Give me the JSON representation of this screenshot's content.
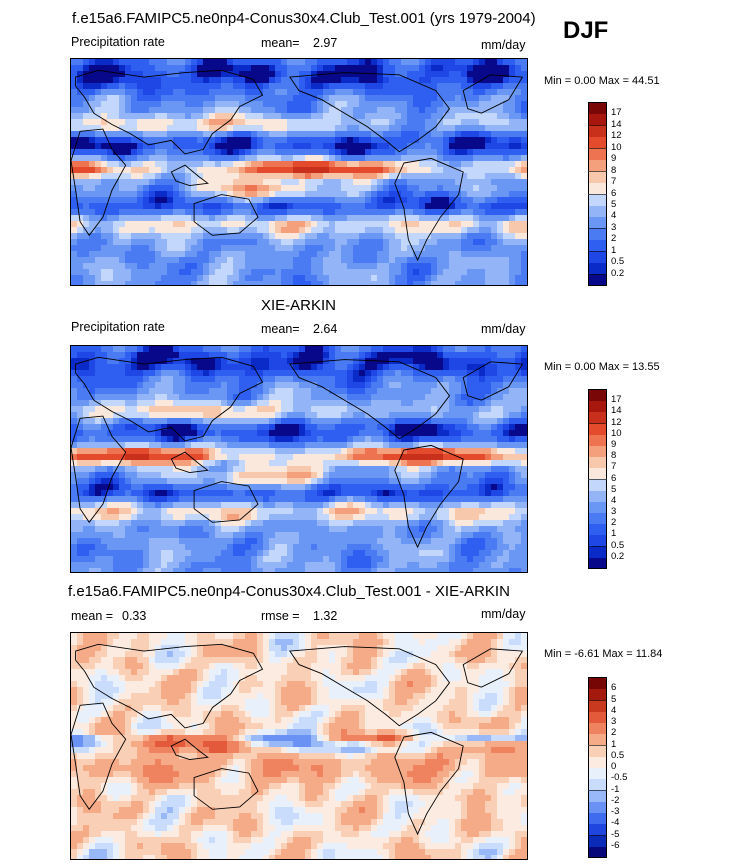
{
  "season": "DJF",
  "panels": [
    {
      "title": "f.e15a6.FAMIPC5.ne0np4-Conus30x4.Club_Test.001 (yrs 1979-2004)",
      "left_label": "Precipitation rate",
      "mid_label": "mean=",
      "mid_value": "2.97",
      "unit": "mm/day",
      "minmax": "Min =   0.00 Max =  44.51",
      "levels": [
        "0.2",
        "0.5",
        "1",
        "2",
        "3",
        "4",
        "5",
        "6",
        "7",
        "8",
        "9",
        "10",
        "12",
        "14",
        "17"
      ],
      "colors": [
        "#08088a",
        "#0a2bc8",
        "#1f47e6",
        "#2f5ff0",
        "#4a7bf2",
        "#6a96f4",
        "#93b4f7",
        "#c2d7fb",
        "#fbe8dc",
        "#f8c8ad",
        "#f4a07d",
        "#ee7351",
        "#e44a2c",
        "#c9301b",
        "#a8170e",
        "#7a0707"
      ],
      "palette": "positive",
      "seed": 11
    },
    {
      "title": "XIE-ARKIN",
      "left_label": "Precipitation rate",
      "mid_label": "mean=",
      "mid_value": "2.64",
      "unit": "mm/day",
      "minmax": "Min =   0.00 Max =  13.55",
      "levels": [
        "0.2",
        "0.5",
        "1",
        "2",
        "3",
        "4",
        "5",
        "6",
        "7",
        "8",
        "9",
        "10",
        "12",
        "14",
        "17"
      ],
      "colors": [
        "#08088a",
        "#0a2bc8",
        "#1f47e6",
        "#2f5ff0",
        "#4a7bf2",
        "#6a96f4",
        "#93b4f7",
        "#c2d7fb",
        "#fbe8dc",
        "#f8c8ad",
        "#f4a07d",
        "#ee7351",
        "#e44a2c",
        "#c9301b",
        "#a8170e",
        "#7a0707"
      ],
      "palette": "positive",
      "seed": 23
    },
    {
      "title": "f.e15a6.FAMIPC5.ne0np4-Conus30x4.Club_Test.001 - XIE-ARKIN",
      "left_label": "mean =",
      "left_value": "0.33",
      "mid_label": "rmse =",
      "mid_value": "1.32",
      "unit": "mm/day",
      "minmax": "Min =  -6.61 Max =  11.84",
      "levels": [
        "-6",
        "-5",
        "-4",
        "-3",
        "-2",
        "-1",
        "-0.5",
        "0",
        "0.5",
        "1",
        "2",
        "3",
        "4",
        "5",
        "6"
      ],
      "colors": [
        "#08087a",
        "#0a2bb8",
        "#1f47e0",
        "#3f6bef",
        "#6a92f4",
        "#99b8f8",
        "#c9dcfb",
        "#e8f0fc",
        "#fcebe0",
        "#f9cfb6",
        "#f5ab88",
        "#ef825f",
        "#e35a3a",
        "#c93920",
        "#a3190e",
        "#760606"
      ],
      "palette": "diverging",
      "seed": 37
    }
  ],
  "chart_data": [
    {
      "type": "heatmap",
      "title": "f.e15a6.FAMIPC5.ne0np4-Conus30x4.Club_Test.001 (yrs 1979-2004)",
      "variable": "Precipitation rate",
      "units": "mm/day",
      "mean": 2.97,
      "min": 0.0,
      "max": 44.51,
      "contour_levels": [
        0.2,
        0.5,
        1,
        2,
        3,
        4,
        5,
        6,
        7,
        8,
        9,
        10,
        12,
        14,
        17
      ]
    },
    {
      "type": "heatmap",
      "title": "XIE-ARKIN",
      "variable": "Precipitation rate",
      "units": "mm/day",
      "mean": 2.64,
      "min": 0.0,
      "max": 13.55,
      "contour_levels": [
        0.2,
        0.5,
        1,
        2,
        3,
        4,
        5,
        6,
        7,
        8,
        9,
        10,
        12,
        14,
        17
      ]
    },
    {
      "type": "heatmap",
      "title": "f.e15a6.FAMIPC5.ne0np4-Conus30x4.Club_Test.001 - XIE-ARKIN",
      "units": "mm/day",
      "mean": 0.33,
      "rmse": 1.32,
      "min": -6.61,
      "max": 11.84,
      "contour_levels": [
        -6,
        -5,
        -4,
        -3,
        -2,
        -1,
        -0.5,
        0,
        0.5,
        1,
        2,
        3,
        4,
        5,
        6
      ]
    }
  ]
}
